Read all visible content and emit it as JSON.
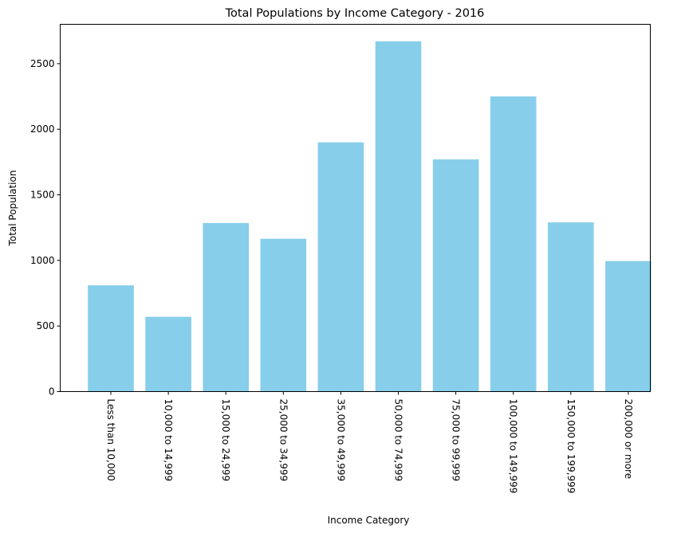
{
  "chart_data": {
    "type": "bar",
    "title": "Total Populations by Income Category - 2016",
    "xlabel": "Income Category",
    "ylabel": "Total Population",
    "categories": [
      "Less than 10,000",
      "10,000 to 14,999",
      "15,000 to 24,999",
      "25,000 to 34,999",
      "35,000 to 49,999",
      "50,000 to 74,999",
      "75,000 to 99,999",
      "100,000 to 149,999",
      "150,000 to 199,999",
      "200,000 or more"
    ],
    "values": [
      810,
      570,
      1285,
      1165,
      1900,
      2670,
      1770,
      2250,
      1290,
      995
    ],
    "ylim": [
      0,
      2800
    ],
    "yticks": [
      0,
      500,
      1000,
      1500,
      2000,
      2500
    ],
    "bar_color": "#87ceeb",
    "grid": false,
    "legend": "none"
  }
}
